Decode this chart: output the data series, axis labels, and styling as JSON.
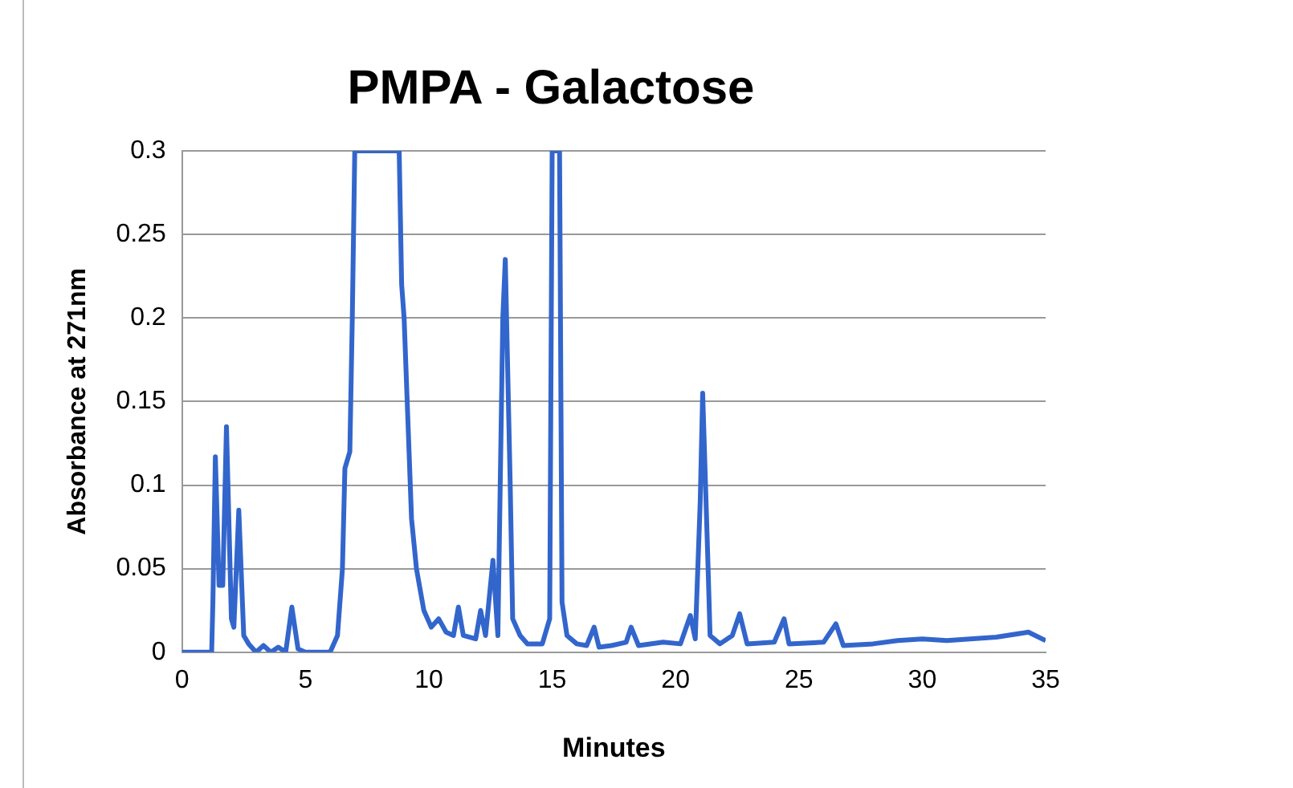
{
  "chart_data": {
    "type": "line",
    "title": "PMPA - Galactose",
    "xlabel": "Minutes",
    "ylabel": "Absorbance at 271nm",
    "xlim": [
      0,
      35
    ],
    "xticks": [
      0,
      5,
      10,
      15,
      20,
      25,
      30,
      35
    ],
    "ylim": [
      0,
      0.3
    ],
    "yticks": [
      0,
      0.05,
      0.1,
      0.15,
      0.2,
      0.25,
      0.3
    ],
    "grid": "y",
    "legend": false,
    "marker": "none",
    "line_style": "solid",
    "series": [
      {
        "color": "#3366cc",
        "x": [
          0,
          1.2,
          1.25,
          1.35,
          1.5,
          1.65,
          1.8,
          2.0,
          2.1,
          2.3,
          2.5,
          2.7,
          3.0,
          3.3,
          3.6,
          3.9,
          4.2,
          4.45,
          4.7,
          5.0,
          6.0,
          6.3,
          6.5,
          6.6,
          6.8,
          6.9,
          7.0,
          8.8,
          8.9,
          9.0,
          9.3,
          9.5,
          9.8,
          10.1,
          10.4,
          10.7,
          11.0,
          11.2,
          11.4,
          11.9,
          12.1,
          12.3,
          12.6,
          12.8,
          13.0,
          13.1,
          13.3,
          13.4,
          13.7,
          14.0,
          14.6,
          14.9,
          15.0,
          15.3,
          15.4,
          15.6,
          16.0,
          16.4,
          16.7,
          16.9,
          17.4,
          18.0,
          18.2,
          18.5,
          19.5,
          20.2,
          20.6,
          20.8,
          21.0,
          21.1,
          21.3,
          21.4,
          21.8,
          22.3,
          22.6,
          22.9,
          24.0,
          24.4,
          24.6,
          26.0,
          26.5,
          26.8,
          28.0,
          29.0,
          30.0,
          31.0,
          33.0,
          34.3,
          35
        ],
        "values": [
          0,
          0,
          0.03,
          0.117,
          0.04,
          0.04,
          0.135,
          0.02,
          0.015,
          0.085,
          0.01,
          0.005,
          0,
          0.004,
          0,
          0.003,
          0,
          0.027,
          0.002,
          0,
          0,
          0.01,
          0.05,
          0.11,
          0.12,
          0.2,
          0.3,
          0.3,
          0.22,
          0.2,
          0.08,
          0.05,
          0.025,
          0.015,
          0.02,
          0.012,
          0.01,
          0.027,
          0.01,
          0.008,
          0.025,
          0.01,
          0.055,
          0.01,
          0.2,
          0.235,
          0.1,
          0.02,
          0.01,
          0.005,
          0.005,
          0.02,
          0.3,
          0.3,
          0.03,
          0.01,
          0.005,
          0.004,
          0.015,
          0.003,
          0.004,
          0.006,
          0.015,
          0.004,
          0.006,
          0.005,
          0.022,
          0.008,
          0.09,
          0.155,
          0.06,
          0.01,
          0.005,
          0.01,
          0.023,
          0.005,
          0.006,
          0.02,
          0.005,
          0.006,
          0.017,
          0.004,
          0.005,
          0.007,
          0.008,
          0.007,
          0.009,
          0.012,
          0.007
        ]
      }
    ]
  }
}
